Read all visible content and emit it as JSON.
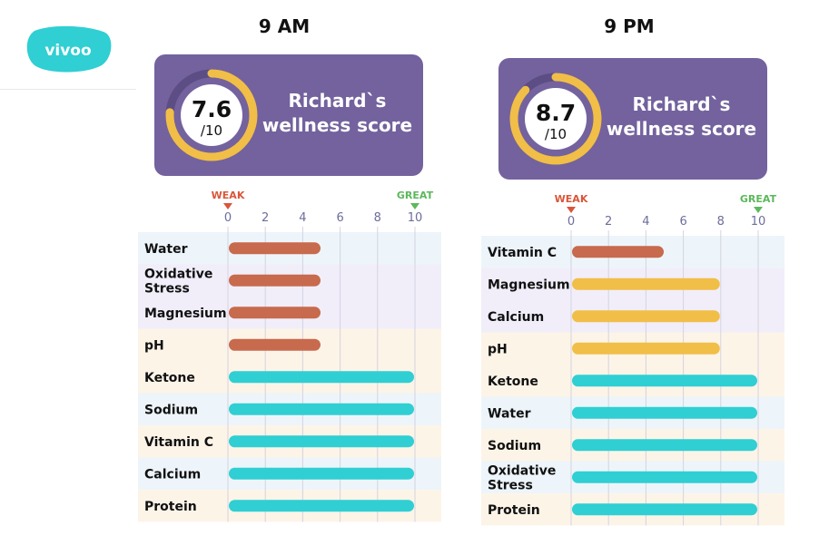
{
  "brand": {
    "logo_text": "vivoo"
  },
  "colors": {
    "weak_bar": "#c76a4d",
    "medium_bar": "#f1be48",
    "great_bar": "#2fcfd3",
    "card_bg": "#73629e",
    "ring": "#f1be48",
    "weak_marker": "#d9553a",
    "great_marker": "#5cb85c"
  },
  "chart_data": [
    {
      "type": "bar",
      "orientation": "horizontal",
      "title": "9 AM",
      "score": {
        "value": "7.6",
        "out_of": "/10",
        "fraction": 0.76
      },
      "card_title_line1": "Richard`s",
      "card_title_line2": "wellness score",
      "xlim": [
        0,
        10
      ],
      "ticks": [
        "0",
        "2",
        "4",
        "6",
        "8",
        "10"
      ],
      "weak_label": "WEAK",
      "great_label": "GREAT",
      "grid": true,
      "categories": [
        "Water",
        "Oxidative Stress",
        "Magnesium",
        "pH",
        "Ketone",
        "Sodium",
        "Vitamin C",
        "Calcium",
        "Protein"
      ],
      "values": [
        5,
        5,
        5,
        5,
        10,
        10,
        10,
        10,
        10
      ],
      "levels": [
        "weak",
        "weak",
        "weak",
        "weak",
        "great",
        "great",
        "great",
        "great",
        "great"
      ]
    },
    {
      "type": "bar",
      "orientation": "horizontal",
      "title": "9 PM",
      "score": {
        "value": "8.7",
        "out_of": "/10",
        "fraction": 0.87
      },
      "card_title_line1": "Richard`s",
      "card_title_line2": "wellness score",
      "xlim": [
        0,
        10
      ],
      "ticks": [
        "0",
        "2",
        "4",
        "6",
        "8",
        "10"
      ],
      "weak_label": "WEAK",
      "great_label": "GREAT",
      "grid": true,
      "categories": [
        "Vitamin C",
        "Magnesium",
        "Calcium",
        "pH",
        "Ketone",
        "Water",
        "Sodium",
        "Oxidative Stress",
        "Protein"
      ],
      "values": [
        5,
        8,
        8,
        8,
        10,
        10,
        10,
        10,
        10
      ],
      "levels": [
        "weak",
        "medium",
        "medium",
        "medium",
        "great",
        "great",
        "great",
        "great",
        "great"
      ]
    }
  ]
}
